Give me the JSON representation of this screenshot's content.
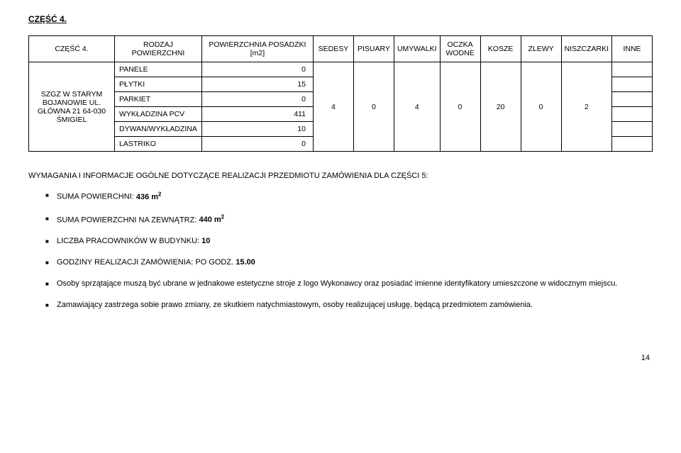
{
  "header": {
    "part": "CZĘŚĆ 4."
  },
  "table": {
    "columns": [
      "CZĘŚĆ 4.",
      "RODZAJ POWIERZCHNI",
      "POWIERZCHNIA POSADZKI [m2]",
      "SEDESY",
      "PISUARY",
      "UMYWALKI",
      "OCZKA WODNE",
      "KOSZE",
      "ZLEWY",
      "NISZCZARKI",
      "INNE"
    ],
    "location": "SZGZ W STARYM BOJANOWIE UL. GŁÓWNA 21 64-030 ŚMIGIEL",
    "surfaces": [
      {
        "label": "PANELE",
        "val": "0"
      },
      {
        "label": "PŁYTKI",
        "val": "15"
      },
      {
        "label": "PARKIET",
        "val": "0"
      },
      {
        "label": "WYKŁADZINA PCV",
        "val": "411"
      },
      {
        "label": "DYWAN/WYKŁADZINA",
        "val": "10"
      },
      {
        "label": "LASTRIKO",
        "val": "0"
      }
    ],
    "agg": {
      "sedesy": "4",
      "pisuary": "0",
      "umywalki": "4",
      "oczka": "0",
      "kosze": "20",
      "zlewy": "0",
      "niszczarki": "2"
    }
  },
  "requirements": {
    "heading": "WYMAGANIA I INFORMACJE OGÓLNE DOTYCZĄCE REALIZACJI PRZEDMIOTU ZAMÓWIENIA DLA CZĘŚCI 5:",
    "items": {
      "i0": {
        "pre": "SUMA POWIERCHNI: ",
        "bold": "436 m",
        "sup": "2"
      },
      "i1": {
        "pre": "SUMA POWIERZCHNI NA ZEWNĄTRZ: ",
        "bold": "440 m",
        "sup": "2"
      },
      "i2": {
        "pre": "LICZBA PRACOWNIKÓW W BUDYNKU: ",
        "bold": "10"
      },
      "i3": {
        "pre": "GODZINY REALIZACJI ZAMÓWIENIA: PO GODZ. ",
        "bold": "15.00"
      },
      "i4": "Osoby sprzątające muszą być ubrane w jednakowe estetyczne stroje z logo Wykonawcy oraz posiadać imienne identyfikatory umieszczone w widocznym miejscu.",
      "i5": "Zamawiający zastrzega sobie prawo zmiany, ze skutkiem natychmiastowym, osoby realizującej usługę, będącą przedmiotem zamówienia."
    }
  },
  "page_number": "14",
  "style": {
    "body_bg": "#ffffff",
    "text_color": "#000000",
    "border_color": "#000000",
    "font_family": "Arial, sans-serif",
    "base_fontsize_pt": 11,
    "table_fontsize_pt": 10.5
  }
}
